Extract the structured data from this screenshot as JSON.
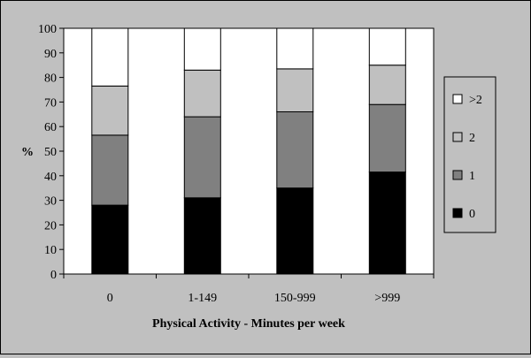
{
  "chart_data": {
    "type": "bar",
    "stacked": true,
    "categories": [
      "0",
      "1-149",
      "150-999",
      ">999"
    ],
    "series": [
      {
        "name": "0",
        "color": "#000000",
        "values": [
          28,
          31,
          35,
          41.5
        ]
      },
      {
        "name": "1",
        "color": "#808080",
        "values": [
          28.5,
          33,
          31,
          27.5
        ]
      },
      {
        "name": "2",
        "color": "#c0c0c0",
        "values": [
          20,
          19,
          17.5,
          16
        ]
      },
      {
        "name": ">2",
        "color": "#ffffff",
        "values": [
          23.5,
          17,
          16.5,
          15
        ]
      }
    ],
    "title": "",
    "xlabel": "Physical Activity - Minutes per week",
    "ylabel": "%",
    "ylim": [
      0,
      100
    ],
    "yticks": [
      "0",
      "10",
      "20",
      "30",
      "40",
      "50",
      "60",
      "70",
      "80",
      "90",
      "100"
    ],
    "grid": false,
    "legend_position": "right",
    "legend_order": [
      ">2",
      "2",
      "1",
      "0"
    ],
    "plot_background": "#ffffff",
    "chart_background": "#c0c0c0"
  }
}
